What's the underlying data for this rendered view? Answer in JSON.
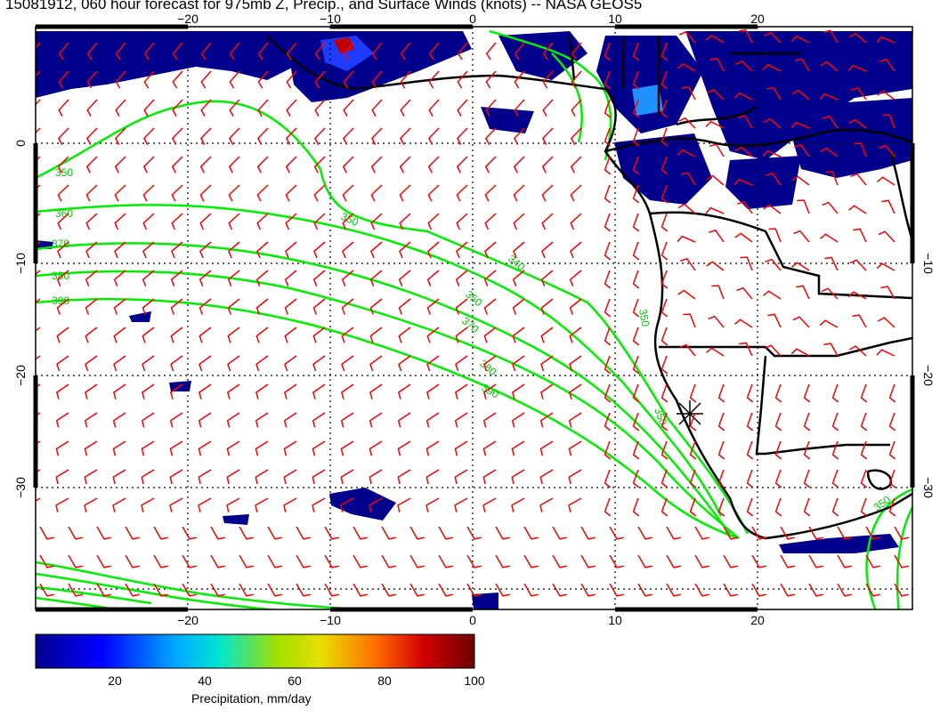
{
  "title": "15081912, 060 hour forecast for 975mb Z, Precip., and Surface Winds (knots) -- NASA GEOS5",
  "map": {
    "lon_ticks_top": [
      "−20",
      "−10",
      "0",
      "10",
      "20"
    ],
    "lon_ticks_bottom": [
      "−20",
      "−10",
      "0",
      "10",
      "20"
    ],
    "lat_ticks_left": [
      "0",
      "−10",
      "−20",
      "−30"
    ],
    "lat_ticks_right": [
      "−10",
      "−20",
      "−30"
    ],
    "contour_labels": [
      "350",
      "360",
      "370",
      "380",
      "390",
      "350",
      "340",
      "350",
      "370",
      "380",
      "390",
      "350",
      "350",
      "350"
    ],
    "colors": {
      "wind_barbs": "#ff0000",
      "contours": "#00ee00",
      "coastline": "#000000",
      "precip_low": "#00008c",
      "precip_high": "#6e0000"
    }
  },
  "colorbar": {
    "ticks": [
      "20",
      "40",
      "60",
      "80",
      "100"
    ],
    "label": "Precipitation, mm/day"
  }
}
